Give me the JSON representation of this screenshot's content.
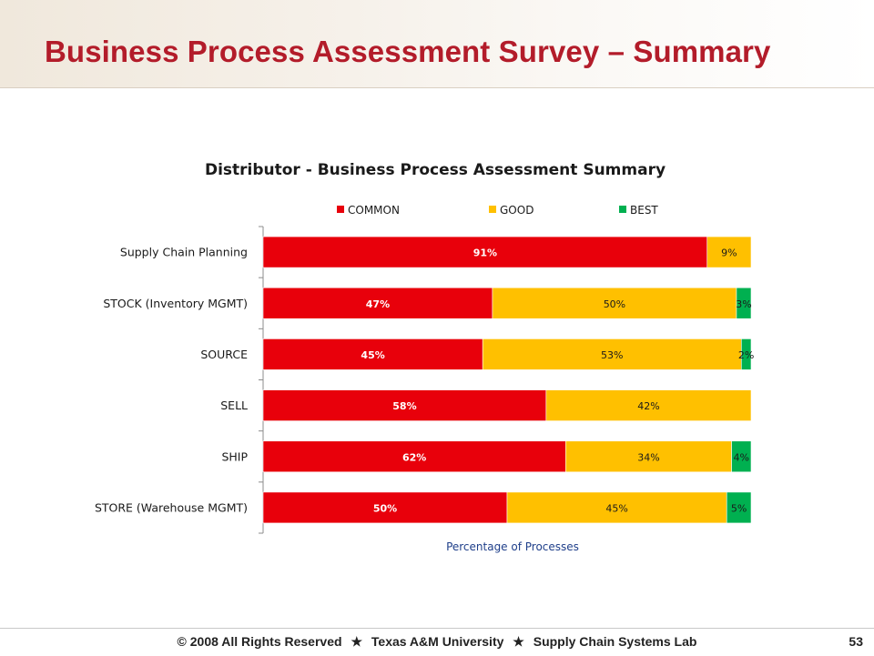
{
  "slide": {
    "title": "Business Process Assessment Survey – Summary"
  },
  "chart_data": {
    "type": "bar",
    "orientation": "horizontal",
    "stacked": true,
    "title": "Distributor - Business Process Assessment Summary",
    "xlabel": "Percentage of Processes",
    "ylabel": "",
    "xlim": [
      0,
      100
    ],
    "grid": false,
    "legend_position": "top",
    "categories": [
      "Supply Chain Planning",
      "STOCK (Inventory MGMT)",
      "SOURCE",
      "SELL",
      "SHIP",
      "STORE (Warehouse MGMT)"
    ],
    "series": [
      {
        "name": "COMMON",
        "color": "#e8000b",
        "values": [
          91,
          47,
          45,
          58,
          62,
          50
        ],
        "labels": [
          "91%",
          "47%",
          "45%",
          "58%",
          "62%",
          "50%"
        ]
      },
      {
        "name": "GOOD",
        "color": "#ffc000",
        "values": [
          9,
          50,
          53,
          42,
          34,
          45
        ],
        "labels": [
          "9%",
          "50%",
          "53%",
          "42%",
          "34%",
          "45%"
        ]
      },
      {
        "name": "BEST",
        "color": "#00b050",
        "values": [
          0,
          3,
          2,
          0,
          4,
          5
        ],
        "labels": [
          "",
          "3%",
          "2%",
          "",
          "4%",
          "5%"
        ]
      }
    ]
  },
  "footer": {
    "copyright_symbol": "©",
    "parts": [
      "2008 All Rights Reserved",
      "Texas A&M University",
      "Supply Chain Systems Lab"
    ],
    "separator": "★",
    "page_number": "53"
  }
}
